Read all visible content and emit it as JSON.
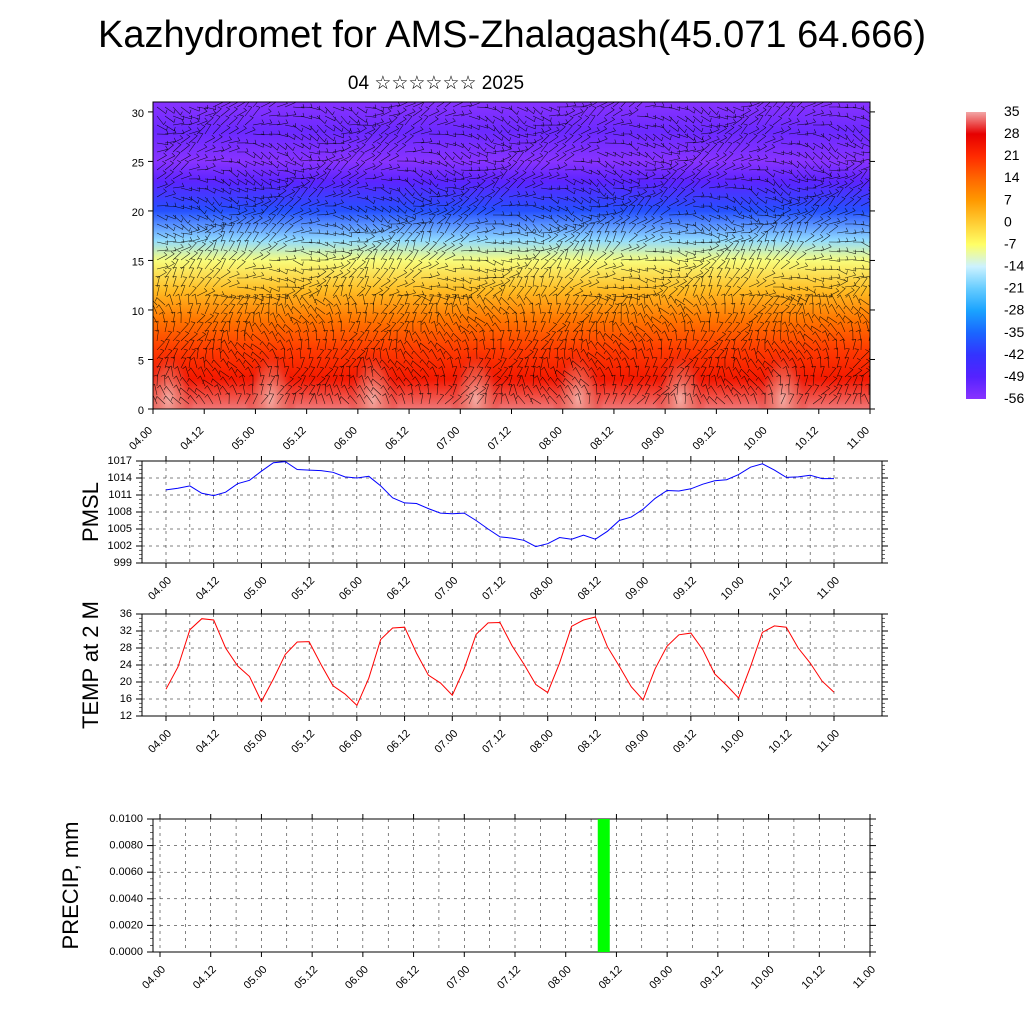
{
  "title": "Kazhydromet for AMS-Zhalagash(45.071 64.666)",
  "subtitle": "04 ☆☆☆☆☆☆ 2025",
  "x_tick_labels": [
    "04.00",
    "04.12",
    "05.00",
    "05.12",
    "06.00",
    "06.12",
    "07.00",
    "07.12",
    "08.00",
    "08.12",
    "09.00",
    "09.12",
    "10.00",
    "10.12",
    "11.00"
  ],
  "chart_data": [
    {
      "type": "heatmap",
      "panel": "cross-section",
      "x": [
        "04.00",
        "04.12",
        "05.00",
        "05.12",
        "06.00",
        "06.12",
        "07.00",
        "07.12",
        "08.00",
        "08.12",
        "09.00",
        "09.12",
        "10.00",
        "10.12",
        "11.00"
      ],
      "ylim": [
        0,
        31
      ],
      "yticks": [
        0,
        5,
        10,
        15,
        20,
        25,
        30
      ],
      "colorbar": {
        "labels": [
          "35",
          "28",
          "21",
          "14",
          "7",
          "0",
          "-7",
          "-14",
          "-21",
          "-28",
          "-35",
          "-42",
          "-49",
          "-56"
        ],
        "colors": [
          "#f2a6a6",
          "#e60000",
          "#ff2a00",
          "#ff6600",
          "#ff9900",
          "#ffcc33",
          "#ffff66",
          "#ccf2ff",
          "#66ccff",
          "#1aa3ff",
          "#1a66ff",
          "#3333ff",
          "#5522ff",
          "#8833ff"
        ]
      },
      "temperature_profile": [
        {
          "height": 0,
          "temp": 33
        },
        {
          "height": 3,
          "temp": 24
        },
        {
          "height": 6,
          "temp": 19
        },
        {
          "height": 9,
          "temp": 12
        },
        {
          "height": 12,
          "temp": 2
        },
        {
          "height": 15,
          "temp": -8
        },
        {
          "height": 17,
          "temp": -18
        },
        {
          "height": 20,
          "temp": -38
        },
        {
          "height": 23,
          "temp": -50
        },
        {
          "height": 25,
          "temp": -56
        },
        {
          "height": 28,
          "temp": -52
        },
        {
          "height": 31,
          "temp": -58
        }
      ],
      "wind_barbs": true
    },
    {
      "type": "line",
      "panel": "pmsl",
      "ylabel": "PMSL",
      "ylim": [
        999,
        1017
      ],
      "yticks": [
        999,
        1002,
        1005,
        1008,
        1011,
        1014,
        1017
      ],
      "x_hours": [
        0,
        3,
        6,
        9,
        12,
        15,
        18,
        21,
        24,
        27,
        30,
        33,
        36,
        39,
        42,
        45,
        48,
        51,
        54,
        57,
        60,
        63,
        66,
        69,
        72,
        75,
        78,
        81,
        84,
        87,
        90,
        93,
        96,
        99,
        102,
        105,
        108,
        111,
        114,
        117,
        120,
        123,
        126,
        129,
        132,
        135,
        138,
        141,
        144,
        147,
        150,
        153,
        156,
        159,
        162,
        165,
        168
      ],
      "series": [
        {
          "color": "#0000ff",
          "values": [
            1011.9,
            1012.2,
            1012.6,
            1011.3,
            1010.9,
            1011.5,
            1013.0,
            1013.6,
            1015.2,
            1016.7,
            1016.9,
            1015.5,
            1015.4,
            1015.3,
            1015.0,
            1014.2,
            1014.0,
            1014.3,
            1012.6,
            1010.5,
            1009.6,
            1009.5,
            1008.6,
            1007.8,
            1007.7,
            1007.8,
            1006.5,
            1005.0,
            1003.6,
            1003.4,
            1003.0,
            1001.9,
            1002.4,
            1003.5,
            1003.2,
            1003.9,
            1003.2,
            1004.6,
            1006.5,
            1007.1,
            1008.5,
            1010.4,
            1011.8,
            1011.7,
            1012.1,
            1012.9,
            1013.5,
            1013.7,
            1014.6,
            1015.9,
            1016.5,
            1015.4,
            1014.1,
            1014.2,
            1014.5,
            1013.9,
            1013.9
          ]
        }
      ]
    },
    {
      "type": "line",
      "panel": "temp2m",
      "ylabel": "TEMP at 2 M",
      "ylim": [
        12,
        36
      ],
      "yticks": [
        12,
        16,
        20,
        24,
        28,
        32,
        36
      ],
      "x_hours": [
        0,
        3,
        6,
        9,
        12,
        15,
        18,
        21,
        24,
        27,
        30,
        33,
        36,
        39,
        42,
        45,
        48,
        51,
        54,
        57,
        60,
        63,
        66,
        69,
        72,
        75,
        78,
        81,
        84,
        87,
        90,
        93,
        96,
        99,
        102,
        105,
        108,
        111,
        114,
        117,
        120,
        123,
        126,
        129,
        132,
        135,
        138,
        141,
        144,
        147,
        150,
        153,
        156,
        159,
        162,
        165,
        168
      ],
      "series": [
        {
          "color": "#ff0000",
          "values": [
            18.3,
            23.5,
            32.3,
            34.9,
            34.6,
            28.0,
            23.8,
            21.3,
            15.4,
            20.7,
            26.5,
            29.4,
            29.5,
            24.1,
            19.1,
            17.2,
            14.5,
            20.9,
            30.0,
            32.7,
            32.9,
            26.8,
            21.6,
            19.8,
            16.9,
            23.1,
            31.2,
            33.9,
            34.0,
            28.6,
            24.2,
            19.4,
            17.5,
            24.5,
            33.1,
            34.6,
            35.3,
            28.3,
            23.7,
            18.9,
            15.8,
            23.1,
            28.4,
            31.1,
            31.5,
            27.6,
            21.9,
            19.2,
            16.2,
            23.6,
            31.7,
            33.2,
            32.9,
            28.0,
            24.5,
            20.2,
            17.6
          ]
        }
      ]
    },
    {
      "type": "bar",
      "panel": "precip",
      "ylabel": "PRECIP, mm",
      "ylim": [
        0,
        0.01
      ],
      "yticks": [
        "0.0000",
        "0.0020",
        "0.0040",
        "0.0060",
        "0.0080",
        "0.0100"
      ],
      "bars": [
        {
          "x_hour": 105,
          "value": 0.01,
          "color": "#00ff00"
        }
      ]
    }
  ]
}
